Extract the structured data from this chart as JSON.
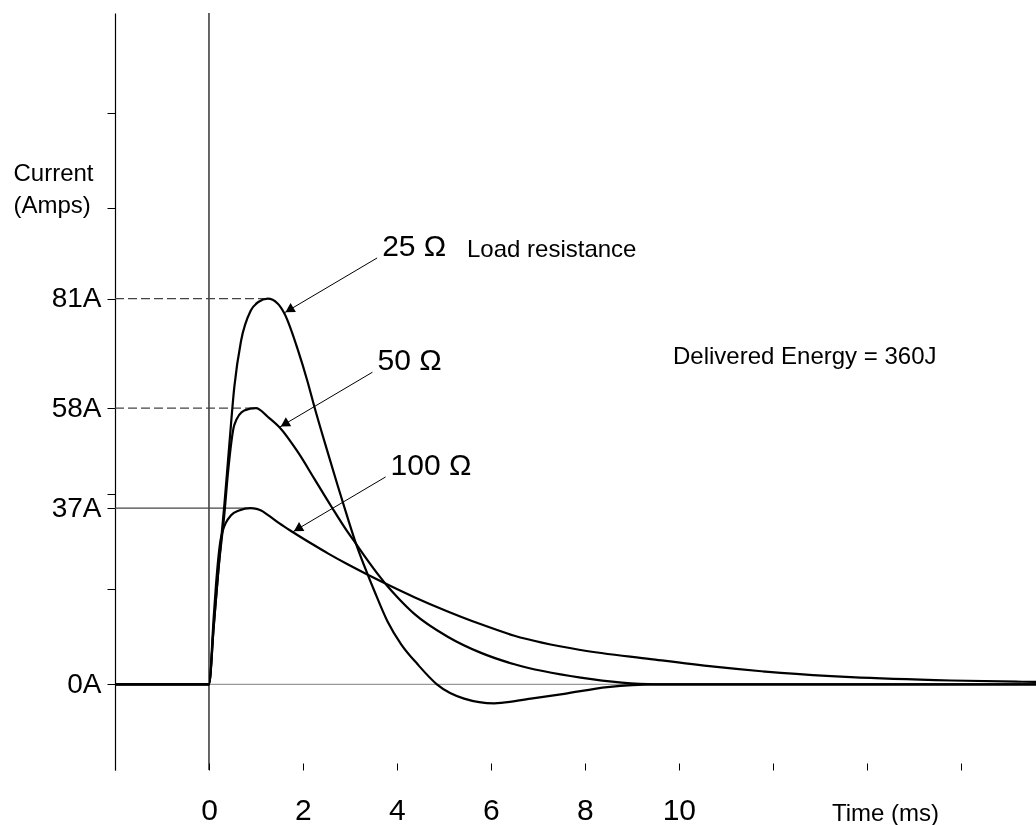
{
  "chart_data": {
    "type": "line",
    "xlabel": "Time (ms)",
    "ylabel": "Current (Amps)",
    "xlim": [
      -2,
      17.6
    ],
    "ylim": [
      -18,
      141
    ],
    "xticks": [
      {
        "value": -2,
        "label": null
      },
      0,
      2,
      4,
      6,
      8,
      10,
      {
        "value": 12,
        "label": null
      },
      {
        "value": 14,
        "label": null
      },
      {
        "value": 16,
        "label": null
      }
    ],
    "yticks": [
      {
        "value": 0,
        "label": "0A"
      },
      {
        "value": 20,
        "label": null
      },
      {
        "value": 37,
        "label": "37A"
      },
      {
        "value": 40,
        "label": null
      },
      {
        "value": 58,
        "label": "58A"
      },
      {
        "value": 81,
        "label": "81A"
      },
      {
        "value": 100,
        "label": null
      },
      {
        "value": 120,
        "label": null
      }
    ],
    "series": [
      {
        "color": "#000000",
        "x": [
          -2,
          0,
          0.1,
          0.2,
          0.33,
          0.43,
          0.54,
          0.68,
          0.89,
          1.05,
          1.25,
          1.46,
          1.6,
          1.89,
          2.1,
          2.24,
          2.53,
          2.74,
          2.95,
          3.13,
          3.38,
          3.52,
          3.8,
          4.09,
          4.44,
          4.85,
          5.43,
          6.07,
          6.85,
          7.56,
          8.48,
          9.5,
          17.6
        ],
        "values": [
          0,
          0,
          12,
          24,
          38,
          50,
          62.5,
          72,
          78.5,
          80.3,
          81,
          80,
          78,
          70.3,
          63.5,
          58.4,
          48.6,
          41.7,
          35,
          29.5,
          23,
          19.6,
          13.2,
          8.4,
          4.2,
          0,
          -3,
          -4,
          -3,
          -2,
          -0.6,
          0,
          0
        ]
      },
      {
        "color": "#000000",
        "x": [
          -2,
          0,
          0.1,
          0.2,
          0.33,
          0.4,
          0.54,
          0.75,
          1.0,
          1.25,
          1.5,
          1.89,
          2.24,
          2.6,
          2.95,
          3.13,
          3.3,
          3.66,
          3.8,
          4.01,
          4.37,
          5.08,
          5.79,
          6.5,
          7.91,
          9.5,
          17.6
        ],
        "values": [
          0,
          0,
          12,
          24,
          36,
          44,
          54.5,
          57.5,
          58,
          56.2,
          54,
          48.8,
          43.2,
          37.4,
          32,
          29.5,
          27.1,
          22.3,
          20.6,
          18.3,
          14.8,
          10,
          6.6,
          4.2,
          1.4,
          0,
          0
        ]
      },
      {
        "color": "#000000",
        "x": [
          -2,
          0,
          0.1,
          0.15,
          0.26,
          0.47,
          0.64,
          0.89,
          1.11,
          1.25,
          1.5,
          1.78,
          2.24,
          2.53,
          2.95,
          3.38,
          3.81,
          4.37,
          5.08,
          5.36,
          5.79,
          6.5,
          7.91,
          9.4,
          10.75,
          12.17,
          13.66,
          15.79,
          17.6
        ],
        "values": [
          0,
          0,
          14,
          21,
          31,
          35.5,
          36.5,
          37,
          36.5,
          35.6,
          33.8,
          32,
          29.2,
          27.5,
          25.2,
          23,
          20.9,
          18.3,
          15.3,
          14.2,
          12.6,
          10.2,
          7.2,
          5.3,
          3.7,
          2.4,
          1.5,
          0.8,
          0.5
        ]
      }
    ],
    "ref_lines": [
      {
        "axis": "y",
        "value": 0,
        "color": "#999999",
        "line_style": "solid"
      },
      {
        "axis": "x",
        "value": 0,
        "color": "#000000",
        "line_style": "solid"
      },
      {
        "axis": "y",
        "value": 81,
        "color": "#444444",
        "line_style": "dashed"
      },
      {
        "axis": "y",
        "value": 58,
        "color": "#444444",
        "line_style": "dashed"
      },
      {
        "axis": "y",
        "value": 37,
        "color": "#444444",
        "line_style": "solid"
      }
    ],
    "annotations": [
      {
        "text": "25 Ω",
        "x": 1.6,
        "y": 78
      },
      {
        "text": "50 Ω",
        "x": 1.5,
        "y": 54
      },
      {
        "text": "100 Ω",
        "x": 1.78,
        "y": 32
      },
      "Load resistance",
      "Delivered Energy = 360J"
    ]
  }
}
